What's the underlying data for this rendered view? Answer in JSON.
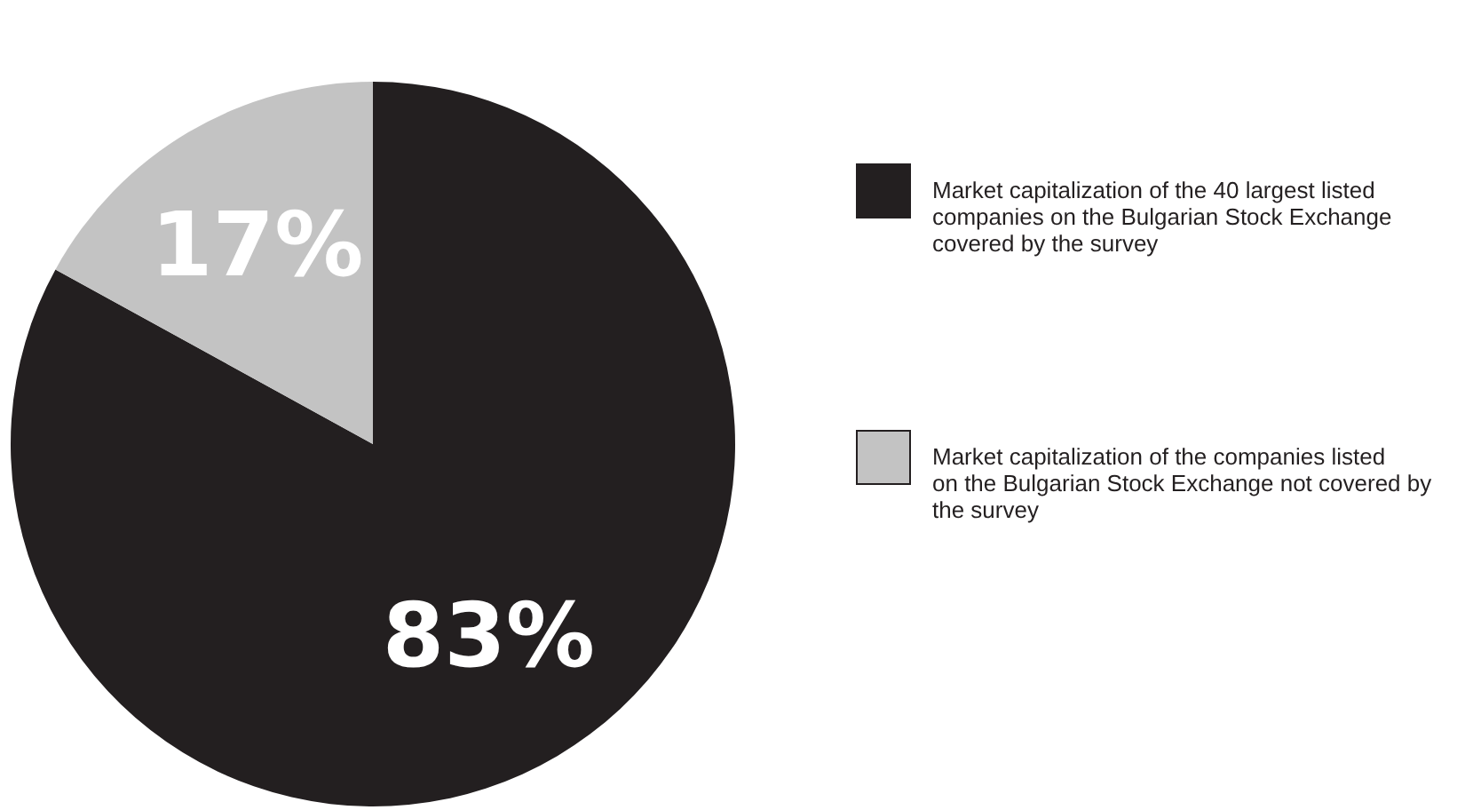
{
  "chart_data": {
    "type": "pie",
    "categories": [
      "Market capitalization of the 40 largest listed companies on the Bulgarian Stock Exchange covered by the survey",
      "Market capitalization of the companies listed on the Bulgarian Stock Exchange not covered by the survey"
    ],
    "values": [
      83,
      17
    ],
    "colors": [
      "#231f20",
      "#c3c3c3"
    ],
    "value_labels": [
      "83%",
      "17%"
    ],
    "legend": "right"
  }
}
